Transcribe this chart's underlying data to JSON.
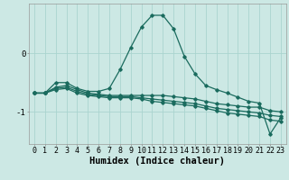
{
  "xlabel": "Humidex (Indice chaleur)",
  "bg_color": "#cce8e4",
  "line_color": "#1a6b5e",
  "grid_color": "#aad4cf",
  "x_values": [
    0,
    1,
    2,
    3,
    4,
    5,
    6,
    7,
    8,
    9,
    10,
    11,
    12,
    13,
    14,
    15,
    16,
    17,
    18,
    19,
    20,
    21,
    22,
    23
  ],
  "series1": [
    -0.68,
    -0.68,
    -0.5,
    -0.5,
    -0.6,
    -0.65,
    -0.65,
    -0.6,
    -0.28,
    0.1,
    0.45,
    0.65,
    0.65,
    0.42,
    -0.05,
    -0.35,
    -0.55,
    -0.62,
    -0.68,
    -0.75,
    -0.82,
    -0.85,
    -1.38,
    -1.1
  ],
  "series2": [
    -0.68,
    -0.68,
    -0.58,
    -0.55,
    -0.62,
    -0.68,
    -0.7,
    -0.72,
    -0.72,
    -0.72,
    -0.72,
    -0.72,
    -0.72,
    -0.74,
    -0.76,
    -0.78,
    -0.82,
    -0.86,
    -0.88,
    -0.9,
    -0.92,
    -0.92,
    -0.98,
    -1.0
  ],
  "series3": [
    -0.68,
    -0.68,
    -0.6,
    -0.58,
    -0.65,
    -0.7,
    -0.72,
    -0.74,
    -0.74,
    -0.74,
    -0.76,
    -0.78,
    -0.8,
    -0.82,
    -0.84,
    -0.86,
    -0.9,
    -0.94,
    -0.96,
    -0.98,
    -1.0,
    -1.02,
    -1.06,
    -1.08
  ],
  "series4": [
    -0.68,
    -0.68,
    -0.62,
    -0.6,
    -0.68,
    -0.72,
    -0.74,
    -0.76,
    -0.76,
    -0.76,
    -0.78,
    -0.82,
    -0.84,
    -0.86,
    -0.88,
    -0.9,
    -0.94,
    -0.98,
    -1.02,
    -1.04,
    -1.06,
    -1.08,
    -1.14,
    -1.16
  ],
  "ylim": [
    -1.55,
    0.85
  ],
  "yticks": [
    -1.0,
    0.0
  ],
  "xlim": [
    -0.5,
    23.5
  ],
  "xtick_labels": [
    "0",
    "1",
    "2",
    "3",
    "4",
    "5",
    "6",
    "7",
    "8",
    "9",
    "10",
    "11",
    "12",
    "13",
    "14",
    "15",
    "16",
    "17",
    "18",
    "19",
    "20",
    "21",
    "22",
    "23"
  ],
  "font_family": "monospace",
  "xlabel_fontsize": 7.5,
  "tick_fontsize": 6.0
}
